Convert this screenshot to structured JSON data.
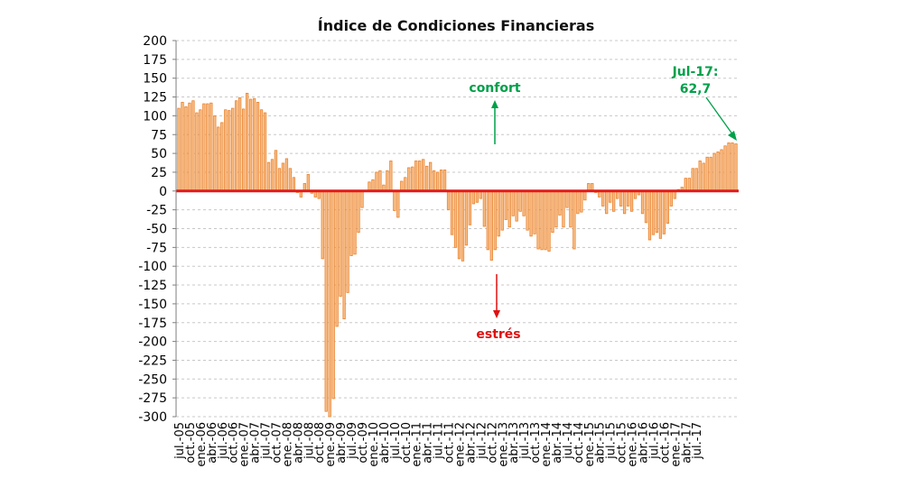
{
  "chart_data": {
    "type": "bar",
    "title": "Índice de Condiciones Financieras",
    "xlabel": "",
    "ylabel": "",
    "ylim": [
      -300,
      200
    ],
    "yticks": [
      200,
      175,
      150,
      125,
      100,
      75,
      50,
      25,
      0,
      -25,
      -50,
      -75,
      -100,
      -125,
      -150,
      -175,
      -200,
      -225,
      -250,
      -275,
      -300
    ],
    "grid": true,
    "legend": "none",
    "frequency": "monthly",
    "start": "jul-05",
    "end": "jul-17",
    "tick_labels": [
      "jul.-05",
      "oct.-05",
      "ene.-06",
      "abr.-06",
      "jul.-06",
      "oct.-06",
      "ene.-07",
      "abr.-07",
      "jul.-07",
      "oct.-07",
      "ene.-08",
      "abr.-08",
      "jul.-08",
      "oct.-08",
      "ene.-09",
      "abr.-09",
      "jul.-09",
      "oct.-09",
      "ene.-10",
      "abr.-10",
      "jul.-10",
      "oct.-10",
      "ene.-11",
      "abr.-11",
      "jul.-11",
      "oct.-11",
      "ene.-12",
      "abr.-12",
      "jul.-12",
      "oct.-12",
      "ene.-13",
      "abr.-13",
      "jul.-13",
      "oct.-13",
      "ene.-14",
      "abr.-14",
      "jul.-14",
      "oct.-14",
      "ene.-15",
      "abr.-15",
      "jul.-15",
      "oct.-15",
      "ene.-16",
      "abr.-16",
      "jul.-16",
      "oct.-16",
      "ene.-17",
      "abr.-17",
      "jul.-17"
    ],
    "values": [
      110,
      118,
      112,
      117,
      120,
      104,
      108,
      116,
      116,
      117,
      100,
      85,
      91,
      108,
      107,
      110,
      120,
      124,
      109,
      130,
      122,
      123,
      118,
      108,
      104,
      38,
      42,
      54,
      30,
      37,
      43,
      30,
      18,
      -2,
      -8,
      10,
      22,
      -3,
      -8,
      -10,
      -90,
      -293,
      -300,
      -276,
      -180,
      -140,
      -170,
      -135,
      -86,
      -84,
      -55,
      -22,
      0,
      12,
      15,
      25,
      27,
      8,
      27,
      40,
      -26,
      -35,
      13,
      18,
      31,
      32,
      40,
      40,
      42,
      33,
      38,
      27,
      25,
      28,
      28,
      -25,
      -58,
      -75,
      -90,
      -93,
      -72,
      -45,
      -17,
      -15,
      -10,
      -47,
      -78,
      -92,
      -78,
      -60,
      -52,
      -38,
      -48,
      -33,
      -40,
      -27,
      -33,
      -52,
      -60,
      -57,
      -77,
      -78,
      -78,
      -80,
      -55,
      -48,
      -32,
      -48,
      -22,
      -48,
      -77,
      -30,
      -28,
      -12,
      10,
      10,
      -2,
      -8,
      -20,
      -30,
      -15,
      -27,
      -10,
      -20,
      -30,
      -20,
      -27,
      -10,
      -5,
      -30,
      -42,
      -65,
      -58,
      -55,
      -63,
      -57,
      -43,
      -20,
      -10,
      2,
      5,
      17,
      17,
      30,
      30,
      40,
      37,
      45,
      45,
      50,
      52,
      55,
      60,
      64,
      64,
      62.7
    ],
    "annotations": [
      {
        "text": "confort",
        "color": "#00a04a",
        "arrow": "up"
      },
      {
        "text": "estrés",
        "color": "#e01010",
        "arrow": "down"
      },
      {
        "text_line1": "Jul-17:",
        "text_line2": "62,7",
        "color": "#00a04a",
        "points_to": "jul-17"
      }
    ],
    "colors": {
      "bar_fill": "#f9c08a",
      "bar_stroke": "#e9822d",
      "zero_line": "#e41a1a",
      "grid": "#c8c8c8",
      "axis": "#7f7f7f"
    }
  }
}
